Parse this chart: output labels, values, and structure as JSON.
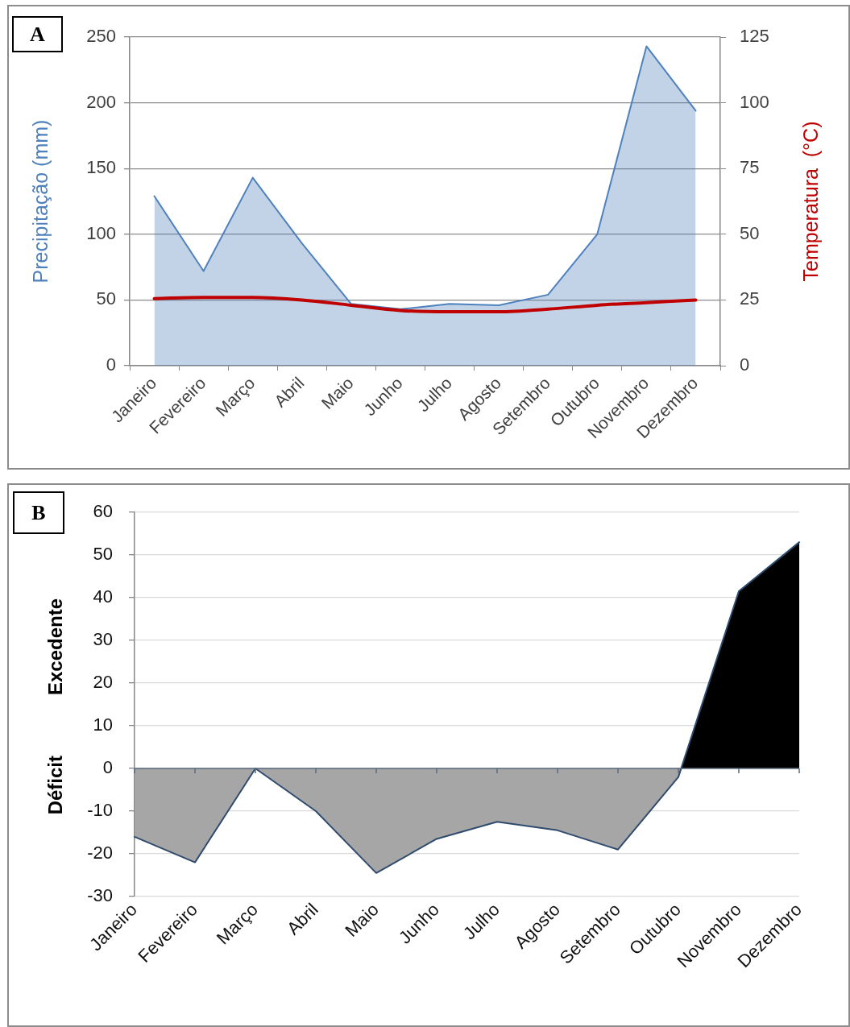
{
  "chart_data": [
    {
      "type": "area",
      "title": "A",
      "categories": [
        "Janeiro",
        "Fevereiro",
        "Março",
        "Abril",
        "Maio",
        "Junho",
        "Julho",
        "Agosto",
        "Setembro",
        "Outubro",
        "Novembro",
        "Dezembro"
      ],
      "ylabel": "Precipitação (mm)",
      "y2label": "Temperatura  (°C)",
      "ylim": [
        0,
        250
      ],
      "yticks": [
        0,
        50,
        100,
        150,
        200,
        250
      ],
      "y2lim": [
        0,
        125
      ],
      "y2ticks": [
        0,
        25,
        50,
        75,
        100,
        125
      ],
      "grid": "y",
      "series": [
        {
          "type": "area",
          "color": "#4f81bd",
          "values": [
            129,
            72,
            143,
            93,
            47,
            43,
            47,
            46,
            54,
            100,
            243,
            194
          ]
        },
        {
          "type": "line",
          "axis": "y2",
          "color": "#c00000",
          "values": [
            25.5,
            26,
            26,
            25,
            23,
            21,
            20.5,
            20.5,
            21.5,
            23,
            24,
            25
          ]
        }
      ]
    },
    {
      "type": "area",
      "title": "B",
      "categories": [
        "Janeiro",
        "Fevereiro",
        "Março",
        "Abril",
        "Maio",
        "Junho",
        "Julho",
        "Agosto",
        "Setembro",
        "Outubro",
        "Novembro",
        "Dezembro"
      ],
      "ylim": [
        -30,
        60
      ],
      "yticks": [
        -30,
        -20,
        -10,
        0,
        10,
        20,
        30,
        40,
        50,
        60
      ],
      "grid": "y",
      "series": [
        {
          "color": "#2f4b6e",
          "colors": [
            "#a6a6a6",
            "#a6a6a6",
            "#a6a6a6",
            "#a6a6a6",
            "#a6a6a6",
            "#a6a6a6",
            "#a6a6a6",
            "#a6a6a6",
            "#a6a6a6",
            "#a6a6a6",
            "#000000",
            "#000000"
          ],
          "values": [
            -16,
            -22,
            0,
            -10,
            -24.5,
            -16.5,
            -12.5,
            -14.5,
            -19,
            -2,
            41.5,
            53
          ]
        }
      ],
      "annotations": [
        "Excedente",
        "Déficit"
      ]
    }
  ]
}
